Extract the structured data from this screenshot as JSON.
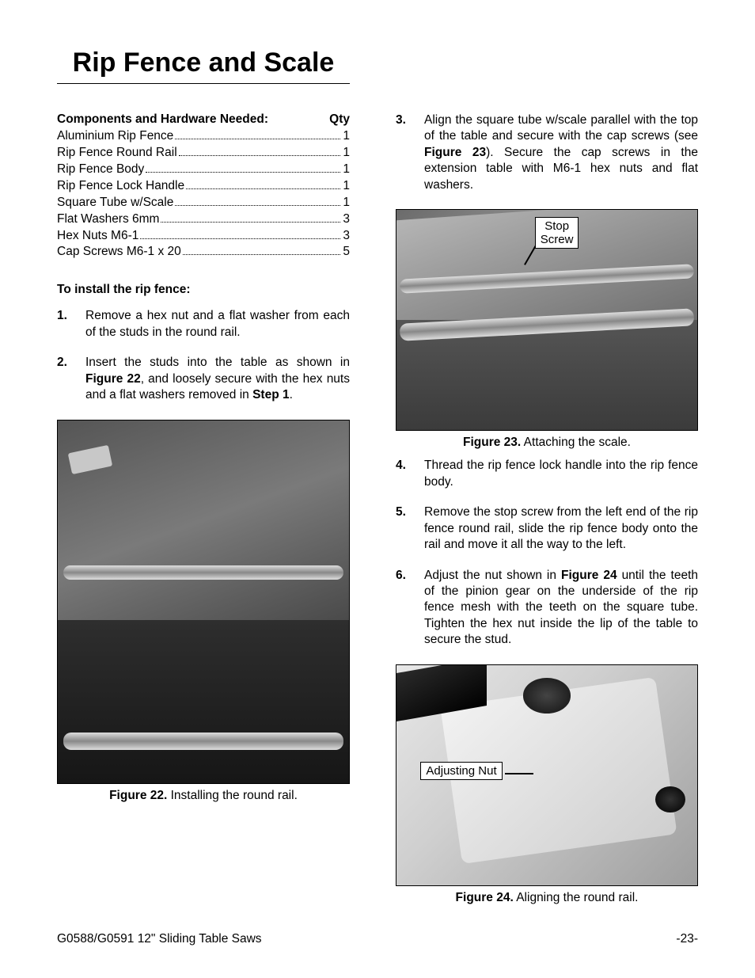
{
  "title": "Rip Fence and Scale",
  "components_header_left": "Components and Hardware Needed:",
  "components_header_right": "Qty",
  "components": [
    {
      "name": "Aluminium Rip Fence",
      "qty": "1"
    },
    {
      "name": "Rip Fence Round Rail",
      "qty": "1"
    },
    {
      "name": "Rip Fence Body",
      "qty": "1"
    },
    {
      "name": "Rip Fence Lock Handle",
      "qty": "1"
    },
    {
      "name": "Square Tube w/Scale",
      "qty": "1"
    },
    {
      "name": "Flat Washers 6mm",
      "qty": "3"
    },
    {
      "name": "Hex Nuts M6-1",
      "qty": "3"
    },
    {
      "name": "Cap Screws M6-1 x 20",
      "qty": "5"
    }
  ],
  "install_heading": "To install the rip fence:",
  "steps_left": [
    {
      "n": "1.",
      "t1": "Remove a hex nut and a flat washer from each of the studs in the round rail."
    },
    {
      "n": "2.",
      "t1": "Insert the studs into the table as shown in ",
      "b1": "Figure 22",
      "t2": ", and loosely secure with the hex nuts and a flat washers removed in ",
      "b2": "Step 1",
      "t3": "."
    }
  ],
  "steps_right": [
    {
      "n": "3.",
      "t1": "Align the square tube w/scale parallel with the top of the table and secure with the cap screws (see ",
      "b1": "Figure 23",
      "t2": "). Secure the cap screws in the extension table with M6-1 hex nuts and flat washers."
    },
    {
      "n": "4.",
      "t1": "Thread the rip fence lock handle into the rip fence body."
    },
    {
      "n": "5.",
      "t1": "Remove the stop screw from the left end of the rip fence round rail, slide the rip fence body onto the rail and move it all the way to the left."
    },
    {
      "n": "6.",
      "t1": "Adjust the nut shown in ",
      "b1": "Figure 24",
      "t2": " until the teeth of the pinion gear on the underside of the rip fence mesh with the teeth on the square tube. Tighten the hex nut inside the lip of the table to secure the stud."
    }
  ],
  "fig22": {
    "label": "Figure 22.",
    "caption": " Installing the round rail."
  },
  "fig23": {
    "label": "Figure 23.",
    "caption": " Attaching the scale.",
    "callout1": "Stop",
    "callout2": "Screw"
  },
  "fig24": {
    "label": "Figure 24.",
    "caption": " Aligning the round rail.",
    "callout": "Adjusting Nut"
  },
  "footer_left": "G0588/G0591 12\" Sliding Table Saws",
  "footer_right": "-23-"
}
